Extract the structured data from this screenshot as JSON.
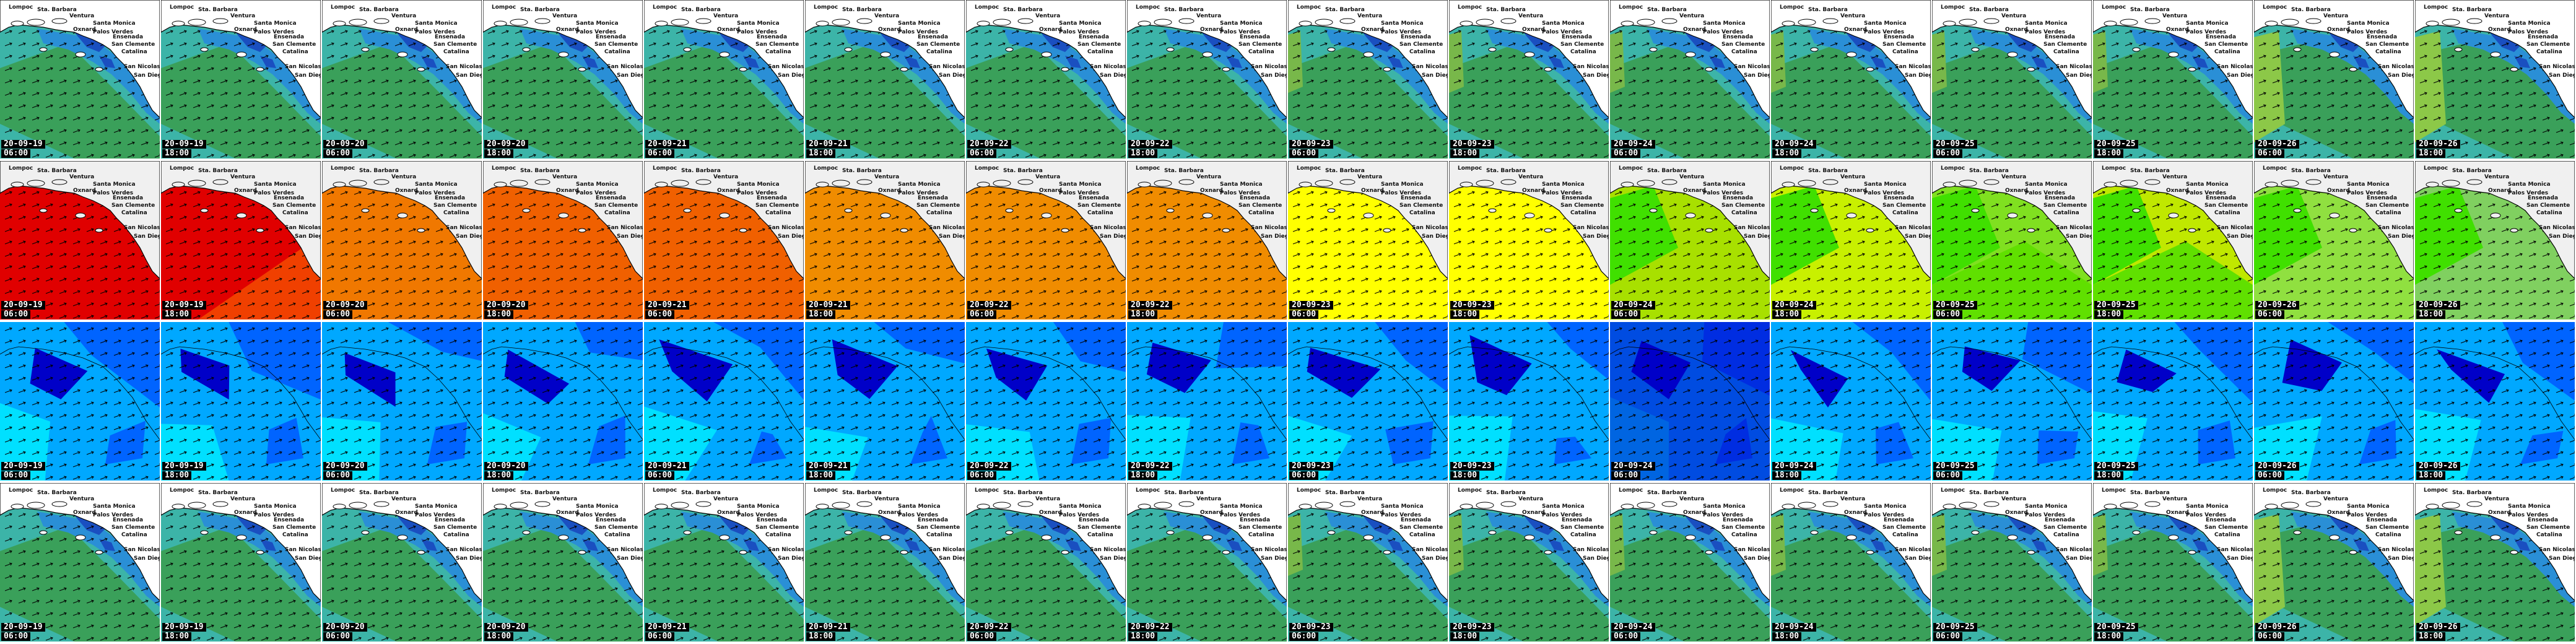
{
  "layout": {
    "rows": 4,
    "cols": 16
  },
  "timestamps": [
    {
      "date": "20-09-19",
      "time": "06:00"
    },
    {
      "date": "20-09-19",
      "time": "18:00"
    },
    {
      "date": "20-09-20",
      "time": "06:00"
    },
    {
      "date": "20-09-20",
      "time": "18:00"
    },
    {
      "date": "20-09-21",
      "time": "06:00"
    },
    {
      "date": "20-09-21",
      "time": "18:00"
    },
    {
      "date": "20-09-22",
      "time": "06:00"
    },
    {
      "date": "20-09-22",
      "time": "18:00"
    },
    {
      "date": "20-09-23",
      "time": "06:00"
    },
    {
      "date": "20-09-23",
      "time": "18:00"
    },
    {
      "date": "20-09-24",
      "time": "06:00"
    },
    {
      "date": "20-09-24",
      "time": "18:00"
    },
    {
      "date": "20-09-25",
      "time": "06:00"
    },
    {
      "date": "20-09-25",
      "time": "18:00"
    },
    {
      "date": "20-09-26",
      "time": "06:00"
    },
    {
      "date": "20-09-26",
      "time": "18:00"
    }
  ],
  "place_names": [
    "Lompoc",
    "Sta. Barbara",
    "Ventura",
    "Santa Monica",
    "Oxnard",
    "Palos Verdes",
    "Ensenada",
    "San Clemente",
    "Catalina",
    "San Nicolas",
    "San Diego"
  ],
  "rows": [
    {
      "name": "wave-height",
      "colors": [
        "#3cb4a8",
        "#3aa05a",
        "#2a8fd6",
        "#1a4fc0"
      ],
      "variant": [
        "a",
        "a",
        "a",
        "a",
        "a",
        "a",
        "a",
        "a",
        "b",
        "b",
        "b",
        "b",
        "b",
        "b",
        "c",
        "c"
      ]
    },
    {
      "name": "wave-period",
      "panel_colors": [
        "#e00000",
        "#e00000",
        "#f07800",
        "#f06000",
        "#f06000",
        "#f08c00",
        "#f08c00",
        "#f08c00",
        "#ffff00",
        "#ffff00",
        "#a8e000",
        "#c8f000",
        "#80e020",
        "#c0e800",
        "#90e040",
        "#80d060"
      ],
      "land": "#f0f0f0"
    },
    {
      "name": "wind-speed",
      "colors": [
        "#00e0ff",
        "#00a8ff",
        "#0064ff",
        "#0000c8"
      ]
    },
    {
      "name": "wave-height-2",
      "colors": [
        "#3cb4a8",
        "#3aa05a",
        "#2a8fd6",
        "#1a4fc0"
      ],
      "variant": [
        "a",
        "a",
        "a",
        "a",
        "a",
        "a",
        "a",
        "a",
        "b",
        "b",
        "b",
        "b",
        "b",
        "b",
        "c",
        "c"
      ]
    }
  ]
}
